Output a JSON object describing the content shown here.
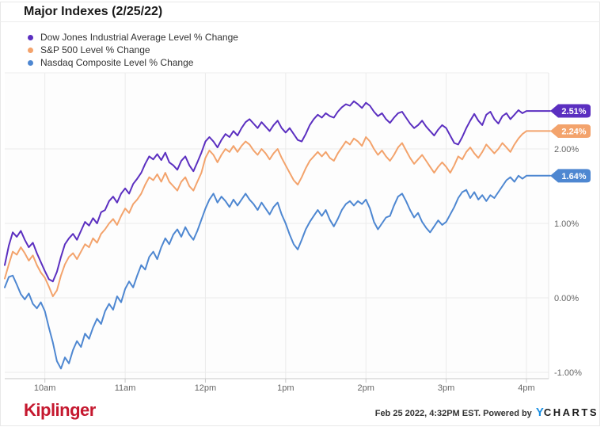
{
  "header": {
    "title": "Major Indexes (2/25/22)"
  },
  "legend": {
    "items": [
      {
        "label": "Dow Jones Industrial Average Level % Change",
        "color": "#5b2fc0"
      },
      {
        "label": "S&P 500 Level % Change",
        "color": "#f3a36c"
      },
      {
        "label": "Nasdaq Composite Level % Change",
        "color": "#4e87d1"
      }
    ]
  },
  "chart_data": {
    "type": "line",
    "title": "Major Indexes (2/25/22)",
    "grid": true,
    "legend_position": "top-left",
    "x_axis": {
      "unit": "intraday time, minutes after 9:30am",
      "start_minute": 0,
      "end_minute": 390,
      "sample_interval_minutes": 3,
      "tick_minutes": [
        30,
        90,
        150,
        210,
        270,
        330,
        390
      ],
      "tick_labels": [
        "10am",
        "11am",
        "12pm",
        "1pm",
        "2pm",
        "3pm",
        "4pm"
      ]
    },
    "y_axis": {
      "unit": "% change",
      "range": [
        -1.09,
        3.02
      ],
      "tick_values": [
        2,
        1,
        0,
        -1
      ],
      "tick_labels": [
        "2.00%",
        "1.00%",
        "0.00%",
        "-1.00%"
      ]
    },
    "series": [
      {
        "id": "dow-jones",
        "name": "Dow Jones Industrial Average Level % Change",
        "color": "#5b2fc0",
        "end_label": "2.51%",
        "end_value": 2.51,
        "values": [
          0.44,
          0.7,
          0.88,
          0.82,
          0.9,
          0.78,
          0.68,
          0.74,
          0.6,
          0.48,
          0.36,
          0.25,
          0.22,
          0.35,
          0.55,
          0.72,
          0.8,
          0.86,
          0.78,
          0.9,
          1.02,
          0.97,
          1.07,
          1.0,
          1.15,
          1.18,
          1.3,
          1.36,
          1.28,
          1.4,
          1.47,
          1.4,
          1.53,
          1.6,
          1.68,
          1.8,
          1.9,
          1.86,
          1.93,
          1.85,
          1.95,
          1.82,
          1.78,
          1.72,
          1.84,
          1.9,
          1.78,
          1.7,
          1.82,
          1.95,
          2.1,
          2.16,
          2.1,
          2.02,
          2.12,
          2.2,
          2.16,
          2.24,
          2.18,
          2.28,
          2.36,
          2.4,
          2.34,
          2.28,
          2.36,
          2.3,
          2.24,
          2.32,
          2.38,
          2.28,
          2.22,
          2.28,
          2.2,
          2.12,
          2.1,
          2.2,
          2.32,
          2.4,
          2.46,
          2.42,
          2.48,
          2.44,
          2.42,
          2.5,
          2.56,
          2.6,
          2.58,
          2.64,
          2.6,
          2.55,
          2.62,
          2.58,
          2.5,
          2.44,
          2.48,
          2.4,
          2.35,
          2.42,
          2.48,
          2.5,
          2.42,
          2.34,
          2.28,
          2.32,
          2.38,
          2.3,
          2.24,
          2.18,
          2.26,
          2.32,
          2.28,
          2.18,
          2.08,
          2.06,
          2.16,
          2.28,
          2.38,
          2.47,
          2.38,
          2.32,
          2.46,
          2.5,
          2.4,
          2.34,
          2.44,
          2.48,
          2.4,
          2.46,
          2.52,
          2.48,
          2.51
        ]
      },
      {
        "id": "sp-500",
        "name": "S&P 500 Level % Change",
        "color": "#f3a36c",
        "end_label": "2.24%",
        "end_value": 2.24,
        "values": [
          0.26,
          0.45,
          0.62,
          0.58,
          0.68,
          0.6,
          0.5,
          0.57,
          0.44,
          0.34,
          0.27,
          0.15,
          0.02,
          0.1,
          0.3,
          0.45,
          0.55,
          0.6,
          0.52,
          0.62,
          0.72,
          0.68,
          0.8,
          0.74,
          0.86,
          0.92,
          1.0,
          1.06,
          0.98,
          1.1,
          1.2,
          1.14,
          1.26,
          1.32,
          1.4,
          1.52,
          1.62,
          1.58,
          1.66,
          1.56,
          1.68,
          1.56,
          1.5,
          1.44,
          1.56,
          1.62,
          1.5,
          1.44,
          1.56,
          1.68,
          1.88,
          1.98,
          1.92,
          1.82,
          1.92,
          2.0,
          1.96,
          2.04,
          1.96,
          2.04,
          2.1,
          2.06,
          1.98,
          1.92,
          2.0,
          1.94,
          1.86,
          1.94,
          2.0,
          1.88,
          1.78,
          1.68,
          1.58,
          1.52,
          1.62,
          1.74,
          1.84,
          1.9,
          1.96,
          1.9,
          1.96,
          1.88,
          1.84,
          1.94,
          2.02,
          2.1,
          2.06,
          2.14,
          2.1,
          2.04,
          2.16,
          2.1,
          2.0,
          1.92,
          1.98,
          1.9,
          1.84,
          1.92,
          2.02,
          2.08,
          1.98,
          1.88,
          1.8,
          1.86,
          1.92,
          1.84,
          1.76,
          1.68,
          1.76,
          1.82,
          1.76,
          1.68,
          1.78,
          1.9,
          1.86,
          1.96,
          2.02,
          1.94,
          1.88,
          1.96,
          2.06,
          2.0,
          1.94,
          2.0,
          2.08,
          2.02,
          1.96,
          2.06,
          2.14,
          2.2,
          2.24
        ]
      },
      {
        "id": "nasdaq",
        "name": "Nasdaq Composite Level % Change",
        "color": "#4e87d1",
        "end_label": "1.64%",
        "end_value": 1.64,
        "values": [
          0.14,
          0.28,
          0.3,
          0.18,
          0.05,
          -0.02,
          0.06,
          -0.08,
          -0.14,
          -0.06,
          -0.18,
          -0.4,
          -0.6,
          -0.85,
          -0.95,
          -0.8,
          -0.88,
          -0.7,
          -0.58,
          -0.66,
          -0.48,
          -0.55,
          -0.4,
          -0.28,
          -0.35,
          -0.18,
          -0.08,
          -0.16,
          0.02,
          -0.06,
          0.12,
          0.22,
          0.14,
          0.3,
          0.44,
          0.38,
          0.55,
          0.62,
          0.52,
          0.68,
          0.8,
          0.72,
          0.85,
          0.92,
          0.82,
          0.95,
          0.85,
          0.78,
          0.9,
          1.05,
          1.2,
          1.32,
          1.4,
          1.28,
          1.36,
          1.3,
          1.22,
          1.32,
          1.24,
          1.32,
          1.4,
          1.32,
          1.26,
          1.18,
          1.28,
          1.2,
          1.12,
          1.22,
          1.28,
          1.12,
          1.0,
          0.85,
          0.72,
          0.65,
          0.78,
          0.92,
          1.02,
          1.1,
          1.18,
          1.1,
          1.18,
          1.05,
          0.96,
          1.06,
          1.18,
          1.26,
          1.3,
          1.24,
          1.3,
          1.26,
          1.32,
          1.2,
          1.02,
          0.92,
          1.0,
          1.08,
          1.1,
          1.24,
          1.36,
          1.4,
          1.3,
          1.18,
          1.08,
          1.14,
          1.02,
          0.94,
          0.88,
          0.96,
          1.04,
          0.98,
          1.02,
          1.12,
          1.22,
          1.34,
          1.42,
          1.45,
          1.34,
          1.42,
          1.32,
          1.38,
          1.3,
          1.38,
          1.34,
          1.42,
          1.5,
          1.58,
          1.62,
          1.56,
          1.64,
          1.6,
          1.64
        ]
      }
    ]
  },
  "footer": {
    "brand": "Kiplinger",
    "timestamp": "Feb 25 2022, 4:32PM EST.",
    "powered_by": "Powered by",
    "ycharts_y": "Y",
    "ycharts_rest": "CHARTS"
  }
}
